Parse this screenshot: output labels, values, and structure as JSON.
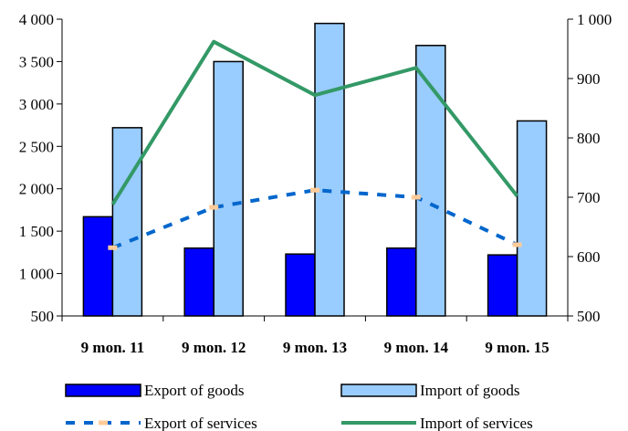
{
  "chart_data": {
    "type": "bar",
    "categories": [
      "9 mon. 11",
      "9 mon. 12",
      "9 mon. 13",
      "9 mon. 14",
      "9 mon. 15"
    ],
    "series": [
      {
        "name": "Export of goods",
        "kind": "bar",
        "axis": "left",
        "color": "#0000ff",
        "values": [
          1670,
          1300,
          1230,
          1300,
          1220
        ]
      },
      {
        "name": "Import of goods",
        "kind": "bar",
        "axis": "left",
        "color": "#99ccff",
        "values": [
          2720,
          3500,
          3950,
          3690,
          2800
        ]
      },
      {
        "name": "Export of services",
        "kind": "line",
        "style": "dashed",
        "axis": "right",
        "color": "#0066cc",
        "marker_color": "#ffcc99",
        "values": [
          615,
          683,
          712,
          700,
          620
        ]
      },
      {
        "name": "Import of services",
        "kind": "line",
        "style": "solid",
        "axis": "right",
        "color": "#339966",
        "values": [
          688,
          962,
          872,
          918,
          702
        ]
      }
    ],
    "y_left": {
      "min": 500,
      "max": 4000,
      "ticks": [
        "500",
        "1 000",
        "1 500",
        "2 000",
        "2 500",
        "3 000",
        "3 500",
        "4 000"
      ],
      "tick_values": [
        500,
        1000,
        1500,
        2000,
        2500,
        3000,
        3500,
        4000
      ]
    },
    "y_right": {
      "min": 500,
      "max": 1000,
      "ticks": [
        "500",
        "600",
        "700",
        "800",
        "900",
        "1 000"
      ],
      "tick_values": [
        500,
        600,
        700,
        800,
        900,
        1000
      ]
    },
    "grid": false,
    "legend_position": "bottom"
  }
}
